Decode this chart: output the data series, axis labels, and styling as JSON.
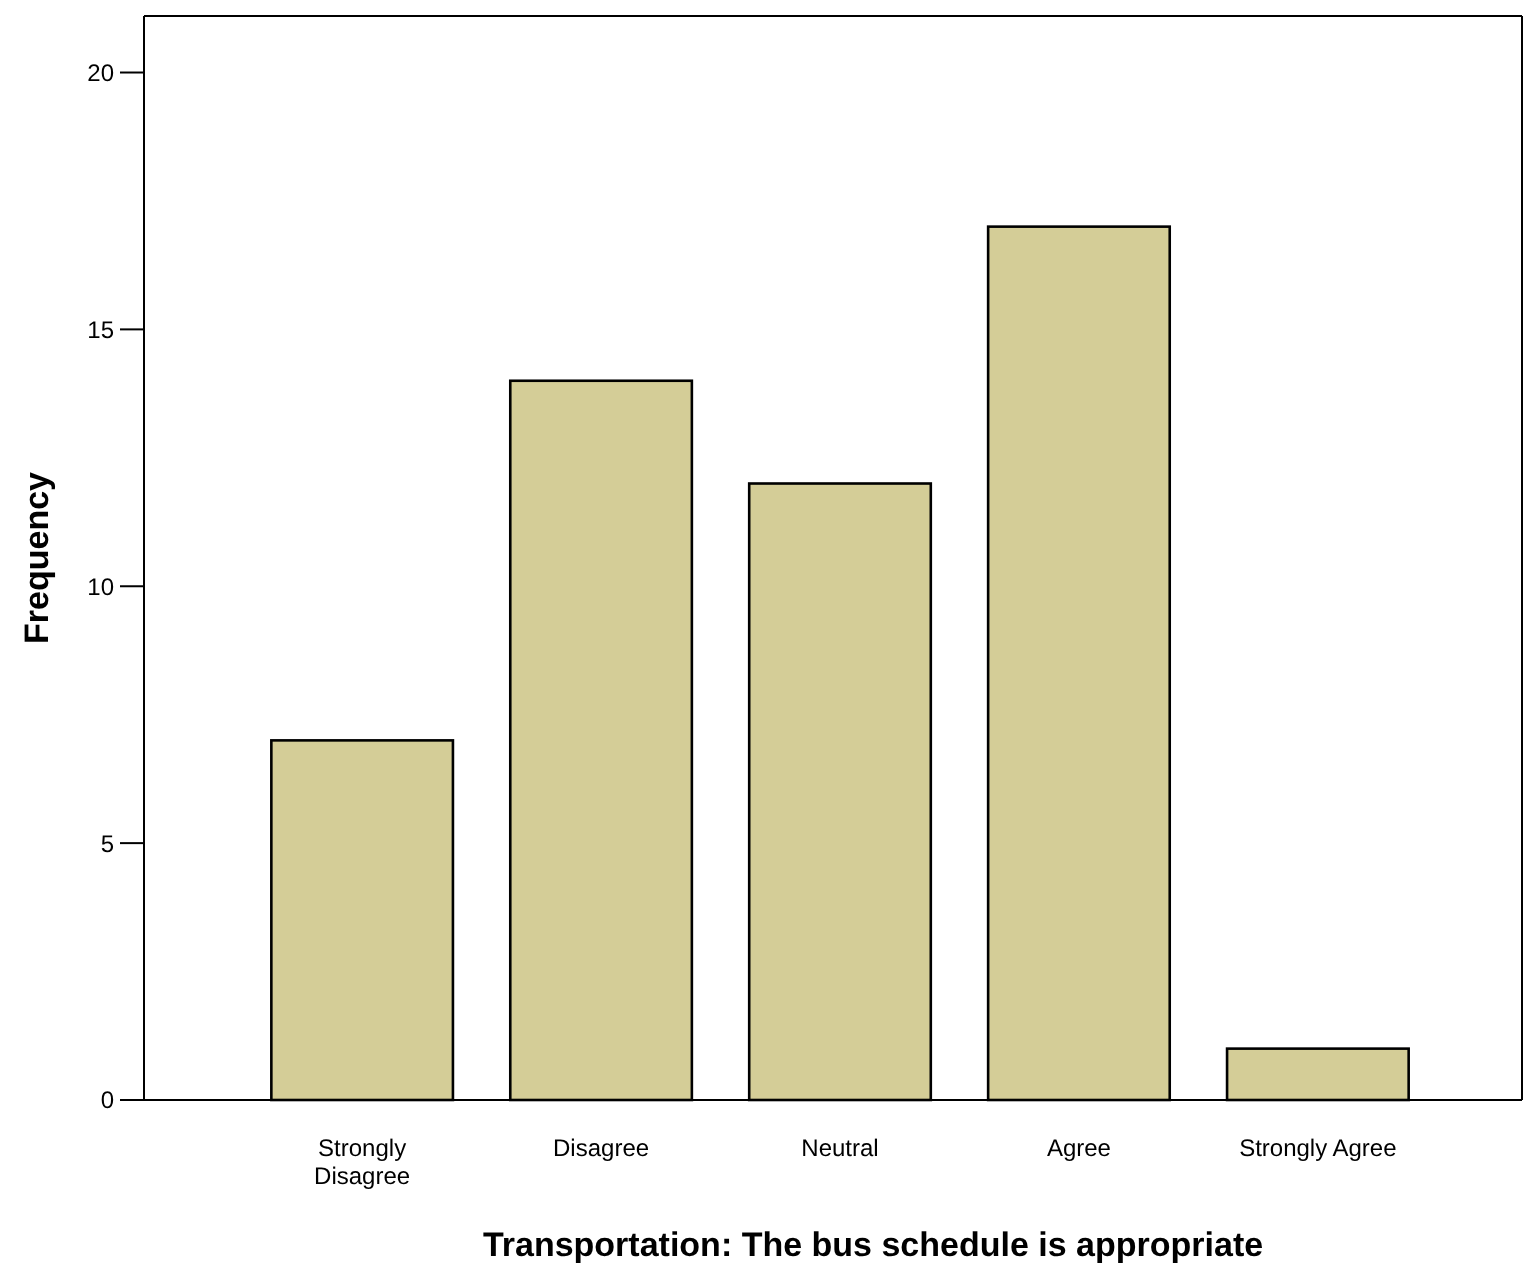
{
  "chart_data": {
    "type": "bar",
    "xlabel": "Transportation: The bus schedule is appropriate",
    "ylabel": "Frequency",
    "categories": [
      "Strongly Disagree",
      "Disagree",
      "Neutral",
      "Agree",
      "Strongly Agree"
    ],
    "values": [
      7,
      14,
      12,
      17,
      1
    ],
    "color": "#d4cd97",
    "ylim": [
      0,
      21.1
    ],
    "yticks": [
      0,
      5,
      10,
      15,
      20
    ],
    "grid": false
  }
}
